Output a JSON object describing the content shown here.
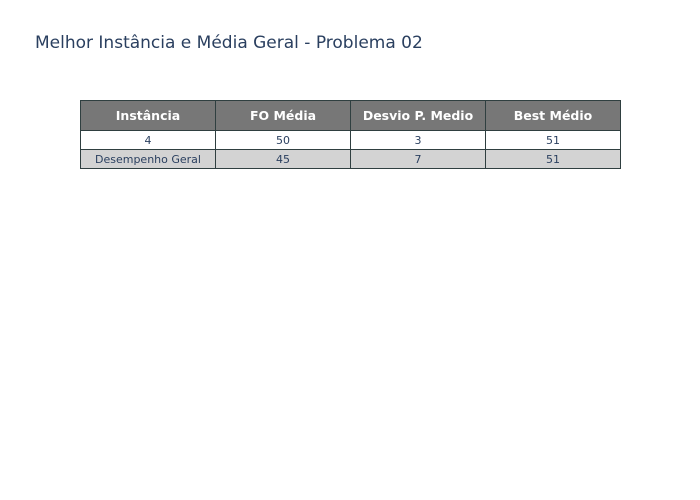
{
  "page": {
    "title": "Melhor Instância e Média Geral - Problema 02"
  },
  "colors": {
    "header_fill": "#777777",
    "header_text": "#ffffff",
    "row_fills": [
      "#ffffff",
      "#d3d3d3"
    ],
    "border": "#2f3f40",
    "text": "#2a3f5f"
  },
  "chart_data": {
    "type": "table",
    "title": "Melhor Instância e Média Geral - Problema 02",
    "columns": [
      "Instância",
      "FO Média",
      "Desvio P. Medio",
      "Best Médio"
    ],
    "rows": [
      [
        "4",
        "50",
        "3",
        "51"
      ],
      [
        "Desempenho Geral",
        "45",
        "7",
        "51"
      ]
    ]
  }
}
